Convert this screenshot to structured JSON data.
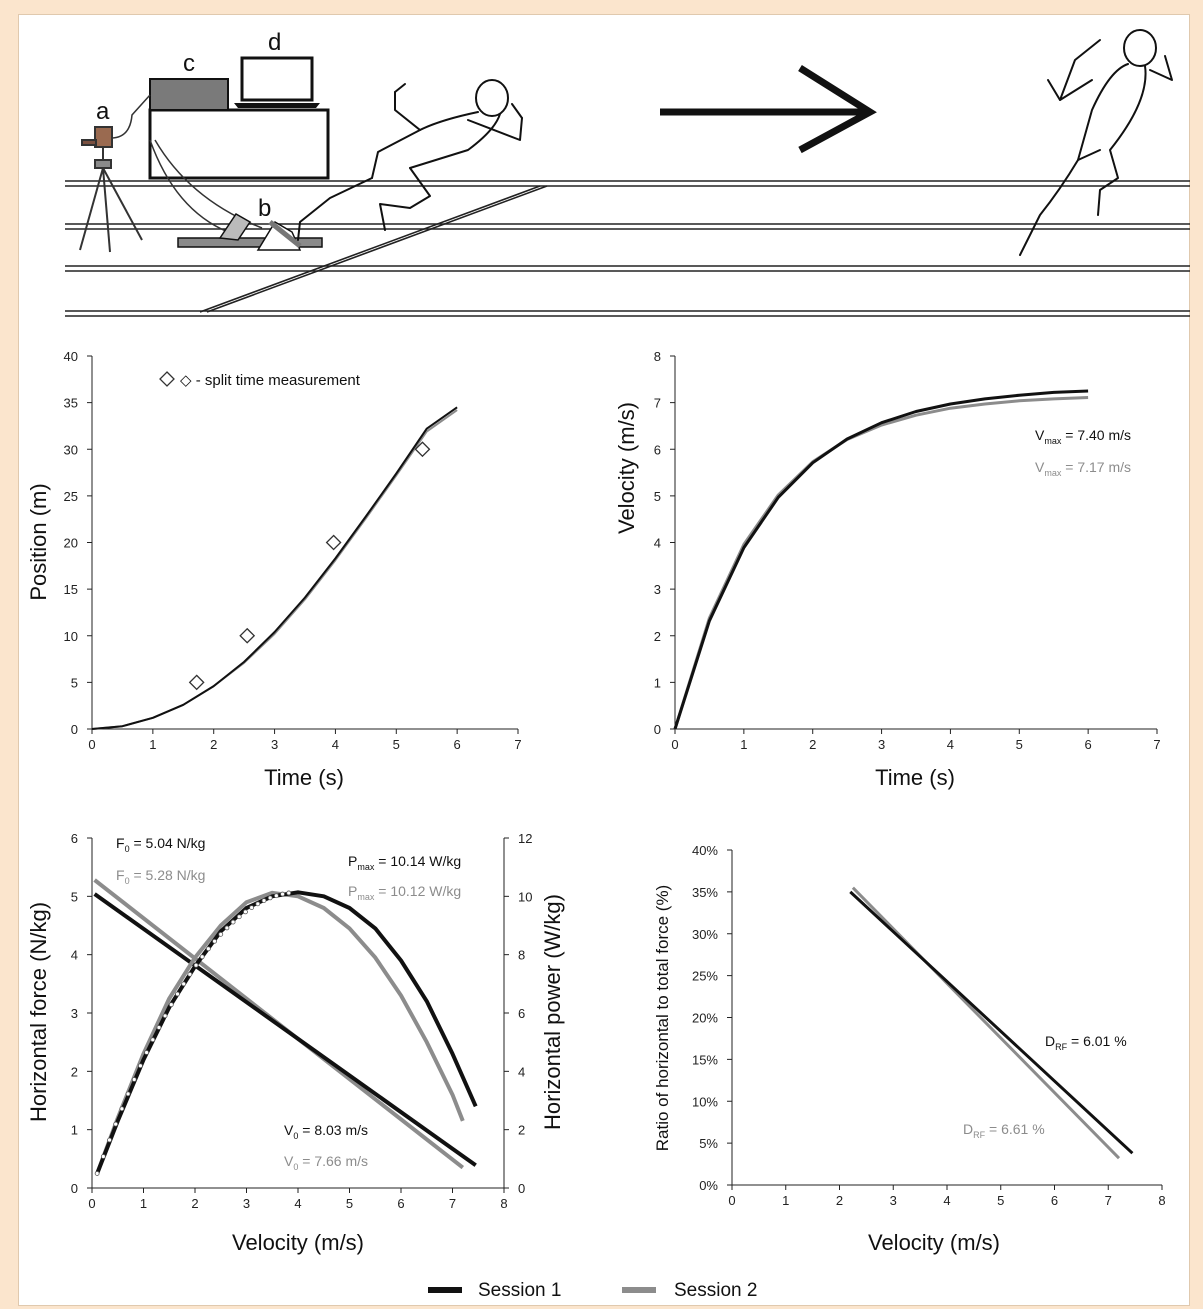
{
  "scene": {
    "labels": [
      "a",
      "b",
      "c",
      "d"
    ]
  },
  "legend": {
    "series1": "Session 1",
    "series2": "Session 2",
    "color1": "#111111",
    "color2": "#8c8c8c"
  },
  "chart_data": [
    {
      "type": "line",
      "title": "",
      "xlabel": "Time (s)",
      "ylabel": "Position (m)",
      "xlim": [
        0,
        7
      ],
      "ylim": [
        0,
        40
      ],
      "xticks": [
        0,
        1,
        2,
        3,
        4,
        5,
        6,
        7
      ],
      "yticks": [
        0,
        5,
        10,
        15,
        20,
        25,
        30,
        35,
        40
      ],
      "legend_note": "◇ - split time measurement",
      "series": [
        {
          "name": "Session 1",
          "x": [
            0,
            0.5,
            1,
            1.5,
            2,
            2.5,
            3,
            3.5,
            4,
            4.5,
            5,
            5.5,
            6
          ],
          "y": [
            0,
            0.3,
            1.2,
            2.6,
            4.6,
            7.2,
            10.4,
            14.1,
            18.3,
            22.8,
            27.4,
            32.2,
            34.5
          ]
        },
        {
          "name": "Session 2",
          "x": [
            0,
            0.5,
            1,
            1.5,
            2,
            2.5,
            3,
            3.5,
            4,
            4.5,
            5,
            5.5,
            6
          ],
          "y": [
            0,
            0.3,
            1.2,
            2.6,
            4.6,
            7.1,
            10.2,
            13.9,
            18.1,
            22.6,
            27.2,
            31.9,
            34.2
          ]
        }
      ],
      "markers": {
        "x": [
          1.72,
          2.55,
          3.97,
          5.43
        ],
        "y": [
          5,
          10,
          20,
          30
        ]
      }
    },
    {
      "type": "line",
      "title": "",
      "xlabel": "Time (s)",
      "ylabel": "Velocity (m/s)",
      "xlim": [
        0,
        7
      ],
      "ylim": [
        0,
        8
      ],
      "xticks": [
        0,
        1,
        2,
        3,
        4,
        5,
        6,
        7
      ],
      "yticks": [
        0,
        1,
        2,
        3,
        4,
        5,
        6,
        7,
        8
      ],
      "series": [
        {
          "name": "Session 1",
          "x": [
            0,
            0.5,
            1,
            1.5,
            2,
            2.5,
            3,
            3.5,
            4,
            4.5,
            5,
            5.5,
            6
          ],
          "y": [
            0,
            2.32,
            3.89,
            4.97,
            5.71,
            6.22,
            6.57,
            6.81,
            6.97,
            7.08,
            7.16,
            7.22,
            7.25
          ]
        },
        {
          "name": "Session 2",
          "x": [
            0,
            0.5,
            1,
            1.5,
            2,
            2.5,
            3,
            3.5,
            4,
            4.5,
            5,
            5.5,
            6
          ],
          "y": [
            0,
            2.38,
            3.96,
            5.02,
            5.73,
            6.21,
            6.52,
            6.73,
            6.88,
            6.97,
            7.04,
            7.08,
            7.11
          ]
        }
      ],
      "annotations": [
        {
          "base": "V",
          "sub": "max",
          "text": " = 7.40 m/s",
          "series": 1
        },
        {
          "base": "V",
          "sub": "max",
          "text": " = 7.17 m/s",
          "series": 2
        }
      ]
    },
    {
      "type": "line",
      "title": "",
      "xlabel": "Velocity (m/s)",
      "ylabel": "Horizontal force (N/kg)",
      "y2label": "Horizontal power (W/kg)",
      "xlim": [
        0,
        8
      ],
      "ylim": [
        0,
        6
      ],
      "y2lim": [
        0,
        12
      ],
      "xticks": [
        0,
        1,
        2,
        3,
        4,
        5,
        6,
        7,
        8
      ],
      "yticks": [
        0,
        1,
        2,
        3,
        4,
        5,
        6
      ],
      "y2ticks": [
        0,
        2,
        4,
        6,
        8,
        10,
        12
      ],
      "force": [
        {
          "name": "Session 1",
          "x": [
            0.05,
            7.45
          ],
          "y": [
            5.04,
            0.39
          ]
        },
        {
          "name": "Session 2",
          "x": [
            0.05,
            7.2
          ],
          "y": [
            5.28,
            0.35
          ]
        }
      ],
      "power": [
        {
          "name": "Session 1",
          "x": [
            0.1,
            0.5,
            1,
            1.5,
            2,
            2.5,
            3,
            3.5,
            4,
            4.5,
            5,
            5.5,
            6,
            6.5,
            7,
            7.45
          ],
          "y": [
            0.5,
            2.3,
            4.4,
            6.2,
            7.6,
            8.8,
            9.6,
            10.0,
            10.14,
            10.0,
            9.6,
            8.9,
            7.8,
            6.4,
            4.6,
            2.8
          ]
        },
        {
          "name": "Session 2",
          "x": [
            0.1,
            0.5,
            1,
            1.5,
            2,
            2.5,
            3,
            3.5,
            4,
            4.5,
            5,
            5.5,
            6,
            6.5,
            7,
            7.2
          ],
          "y": [
            0.5,
            2.4,
            4.6,
            6.5,
            7.9,
            9.0,
            9.8,
            10.12,
            10.0,
            9.6,
            8.9,
            7.9,
            6.6,
            5.0,
            3.2,
            2.3
          ]
        }
      ],
      "annotations": [
        {
          "base": "F",
          "sub": "0",
          "text": " = 5.04 N/kg",
          "series": 1
        },
        {
          "base": "F",
          "sub": "0",
          "text": " = 5.28 N/kg",
          "series": 2
        },
        {
          "base": "P",
          "sub": "max",
          "text": " = 10.14 W/kg",
          "series": 1
        },
        {
          "base": "P",
          "sub": "max",
          "text": " = 10.12 W/kg",
          "series": 2
        },
        {
          "base": "V",
          "sub": "0",
          "text": " = 8.03 m/s",
          "series": 1
        },
        {
          "base": "V",
          "sub": "0",
          "text": " = 7.66 m/s",
          "series": 2
        }
      ]
    },
    {
      "type": "line",
      "title": "",
      "xlabel": "Velocity (m/s)",
      "ylabel": "Ratio of horizontal to total force (%)",
      "xlim": [
        0,
        8
      ],
      "ylim": [
        0,
        40
      ],
      "xticks": [
        0,
        1,
        2,
        3,
        4,
        5,
        6,
        7,
        8
      ],
      "yticks": [
        "0%",
        "5%",
        "10%",
        "15%",
        "20%",
        "25%",
        "30%",
        "35%",
        "40%"
      ],
      "series": [
        {
          "name": "Session 1",
          "x": [
            2.2,
            7.45
          ],
          "y": [
            35.0,
            3.8
          ]
        },
        {
          "name": "Session 2",
          "x": [
            2.25,
            7.2
          ],
          "y": [
            35.5,
            3.2
          ]
        }
      ],
      "annotations": [
        {
          "base": "D",
          "sub": "RF",
          "text": " = 6.01 %",
          "series": 1
        },
        {
          "base": "D",
          "sub": "RF",
          "text": " = 6.61 %",
          "series": 2
        }
      ]
    }
  ]
}
